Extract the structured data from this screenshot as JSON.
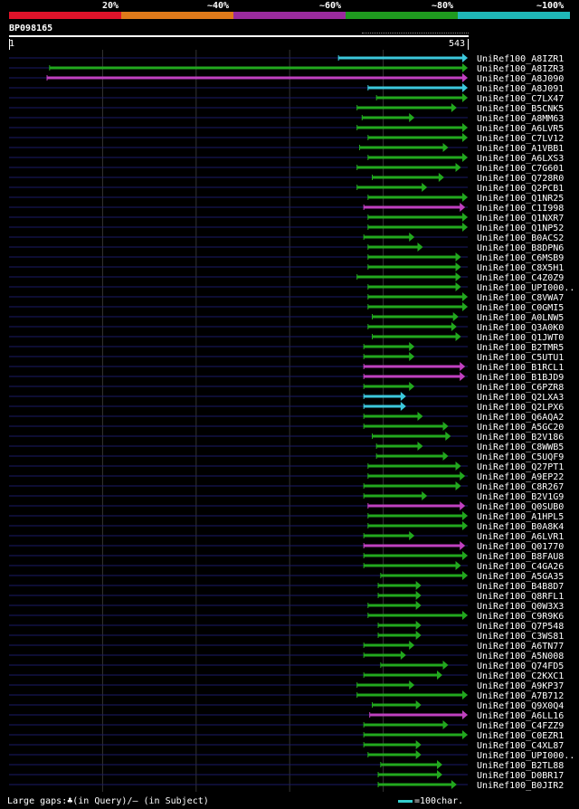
{
  "legend": {
    "labels": [
      "20%",
      "~40%",
      "~60%",
      "~80%",
      "~100%"
    ],
    "colors": [
      "#e0132a",
      "#e07a1a",
      "#9a2b9e",
      "#1f9a1f",
      "#1fb8b8"
    ]
  },
  "query": {
    "id": "BP098165",
    "start": "1",
    "end": "543"
  },
  "footer": {
    "gaps": "Large gaps:♣(in Query)/– (in Subject)",
    "scale": "=100char."
  },
  "colors": {
    "cyan": "#3cc8dc",
    "green": "#22a81e",
    "magenta": "#c040c0",
    "axis": "#1a1a66"
  },
  "chart_data": {
    "type": "alignment",
    "query_length": 543,
    "hits": [
      {
        "label": "UniRef100_A8IZR1",
        "color": "cyan",
        "start": 390,
        "end": 543
      },
      {
        "label": "UniRef100_A8IZR3",
        "color": "green",
        "start": 48,
        "end": 543
      },
      {
        "label": "UniRef100_A8J090",
        "color": "magenta",
        "start": 45,
        "end": 543
      },
      {
        "label": "UniRef100_A8J091",
        "color": "cyan",
        "start": 425,
        "end": 543
      },
      {
        "label": "UniRef100_C7LX47",
        "color": "green",
        "start": 435,
        "end": 543
      },
      {
        "label": "UniRef100_B5CNK5",
        "color": "green",
        "start": 412,
        "end": 530
      },
      {
        "label": "UniRef100_A8MM63",
        "color": "green",
        "start": 418,
        "end": 480
      },
      {
        "label": "UniRef100_A6LVR5",
        "color": "green",
        "start": 412,
        "end": 543
      },
      {
        "label": "UniRef100_C7LV12",
        "color": "green",
        "start": 425,
        "end": 543
      },
      {
        "label": "UniRef100_A1VBB1",
        "color": "green",
        "start": 415,
        "end": 520
      },
      {
        "label": "UniRef100_A6LXS3",
        "color": "green",
        "start": 425,
        "end": 543
      },
      {
        "label": "UniRef100_C7G601",
        "color": "green",
        "start": 412,
        "end": 535
      },
      {
        "label": "UniRef100_Q728R0",
        "color": "green",
        "start": 430,
        "end": 515
      },
      {
        "label": "UniRef100_Q2PCB1",
        "color": "green",
        "start": 412,
        "end": 495
      },
      {
        "label": "UniRef100_Q1NR25",
        "color": "green",
        "start": 425,
        "end": 543
      },
      {
        "label": "UniRef100_C1I998",
        "color": "magenta",
        "start": 420,
        "end": 540
      },
      {
        "label": "UniRef100_Q1NXR7",
        "color": "green",
        "start": 425,
        "end": 543
      },
      {
        "label": "UniRef100_Q1NP52",
        "color": "green",
        "start": 425,
        "end": 543
      },
      {
        "label": "UniRef100_B0ACS2",
        "color": "green",
        "start": 420,
        "end": 480
      },
      {
        "label": "UniRef100_B8DPN6",
        "color": "green",
        "start": 425,
        "end": 490
      },
      {
        "label": "UniRef100_C6MSB9",
        "color": "green",
        "start": 425,
        "end": 535
      },
      {
        "label": "UniRef100_C8X5H1",
        "color": "green",
        "start": 425,
        "end": 535
      },
      {
        "label": "UniRef100_C4Z0Z9",
        "color": "green",
        "start": 412,
        "end": 535
      },
      {
        "label": "UniRef100_UPI000..",
        "color": "green",
        "start": 425,
        "end": 535
      },
      {
        "label": "UniRef100_C8VWA7",
        "color": "green",
        "start": 425,
        "end": 543
      },
      {
        "label": "UniRef100_C0GMI5",
        "color": "green",
        "start": 425,
        "end": 543
      },
      {
        "label": "UniRef100_A0LNW5",
        "color": "green",
        "start": 430,
        "end": 532
      },
      {
        "label": "UniRef100_Q3A0K0",
        "color": "green",
        "start": 425,
        "end": 530
      },
      {
        "label": "UniRef100_Q1JWT0",
        "color": "green",
        "start": 430,
        "end": 535
      },
      {
        "label": "UniRef100_B2TMR5",
        "color": "green",
        "start": 420,
        "end": 480
      },
      {
        "label": "UniRef100_C5UTU1",
        "color": "green",
        "start": 420,
        "end": 480
      },
      {
        "label": "UniRef100_B1RCL1",
        "color": "magenta",
        "start": 420,
        "end": 540
      },
      {
        "label": "UniRef100_B1BJD9",
        "color": "magenta",
        "start": 420,
        "end": 540
      },
      {
        "label": "UniRef100_C6PZR8",
        "color": "green",
        "start": 420,
        "end": 480
      },
      {
        "label": "UniRef100_Q2LXA3",
        "color": "cyan",
        "start": 420,
        "end": 470
      },
      {
        "label": "UniRef100_Q2LPX6",
        "color": "cyan",
        "start": 420,
        "end": 470
      },
      {
        "label": "UniRef100_Q6AQA2",
        "color": "green",
        "start": 420,
        "end": 490
      },
      {
        "label": "UniRef100_A5GC20",
        "color": "green",
        "start": 420,
        "end": 520
      },
      {
        "label": "UniRef100_B2V186",
        "color": "green",
        "start": 430,
        "end": 523
      },
      {
        "label": "UniRef100_C8WWB5",
        "color": "green",
        "start": 435,
        "end": 490
      },
      {
        "label": "UniRef100_C5UQF9",
        "color": "green",
        "start": 435,
        "end": 520
      },
      {
        "label": "UniRef100_Q27PT1",
        "color": "green",
        "start": 425,
        "end": 535
      },
      {
        "label": "UniRef100_A9EP22",
        "color": "green",
        "start": 425,
        "end": 540
      },
      {
        "label": "UniRef100_C8R267",
        "color": "green",
        "start": 420,
        "end": 535
      },
      {
        "label": "UniRef100_B2V1G9",
        "color": "green",
        "start": 420,
        "end": 495
      },
      {
        "label": "UniRef100_Q0SUB0",
        "color": "magenta",
        "start": 425,
        "end": 540
      },
      {
        "label": "UniRef100_A1HPL5",
        "color": "green",
        "start": 425,
        "end": 543
      },
      {
        "label": "UniRef100_B0A8K4",
        "color": "green",
        "start": 425,
        "end": 543
      },
      {
        "label": "UniRef100_A6LVR1",
        "color": "green",
        "start": 420,
        "end": 480
      },
      {
        "label": "UniRef100_Q01770",
        "color": "magenta",
        "start": 420,
        "end": 540
      },
      {
        "label": "UniRef100_B8FAU8",
        "color": "green",
        "start": 420,
        "end": 543
      },
      {
        "label": "UniRef100_C4GA26",
        "color": "green",
        "start": 420,
        "end": 535
      },
      {
        "label": "UniRef100_A5GA35",
        "color": "green",
        "start": 440,
        "end": 543
      },
      {
        "label": "UniRef100_B4B8D7",
        "color": "green",
        "start": 437,
        "end": 488
      },
      {
        "label": "UniRef100_Q8RFL1",
        "color": "green",
        "start": 437,
        "end": 488
      },
      {
        "label": "UniRef100_Q0W3X3",
        "color": "green",
        "start": 425,
        "end": 488
      },
      {
        "label": "UniRef100_C9R9K6",
        "color": "green",
        "start": 425,
        "end": 543
      },
      {
        "label": "UniRef100_Q7P548",
        "color": "green",
        "start": 437,
        "end": 488
      },
      {
        "label": "UniRef100_C3WS81",
        "color": "green",
        "start": 437,
        "end": 488
      },
      {
        "label": "UniRef100_A6TN77",
        "color": "green",
        "start": 420,
        "end": 480
      },
      {
        "label": "UniRef100_A5N008",
        "color": "green",
        "start": 420,
        "end": 470
      },
      {
        "label": "UniRef100_Q74FD5",
        "color": "green",
        "start": 440,
        "end": 520
      },
      {
        "label": "UniRef100_C2KXC1",
        "color": "green",
        "start": 420,
        "end": 513
      },
      {
        "label": "UniRef100_A9KP37",
        "color": "green",
        "start": 412,
        "end": 480
      },
      {
        "label": "UniRef100_A7B712",
        "color": "green",
        "start": 412,
        "end": 543
      },
      {
        "label": "UniRef100_Q9X0Q4",
        "color": "green",
        "start": 430,
        "end": 488
      },
      {
        "label": "UniRef100_A6LL16",
        "color": "magenta",
        "start": 427,
        "end": 543
      },
      {
        "label": "UniRef100_C4FZZ9",
        "color": "green",
        "start": 420,
        "end": 520
      },
      {
        "label": "UniRef100_C0EZR1",
        "color": "green",
        "start": 420,
        "end": 543
      },
      {
        "label": "UniRef100_C4XL87",
        "color": "green",
        "start": 420,
        "end": 488
      },
      {
        "label": "UniRef100_UPI000..",
        "color": "green",
        "start": 425,
        "end": 488
      },
      {
        "label": "UniRef100_B2TL88",
        "color": "green",
        "start": 440,
        "end": 513
      },
      {
        "label": "UniRef100_D0BR17",
        "color": "green",
        "start": 437,
        "end": 513
      },
      {
        "label": "UniRef100_B0JIR2",
        "color": "green",
        "start": 437,
        "end": 530
      }
    ]
  }
}
